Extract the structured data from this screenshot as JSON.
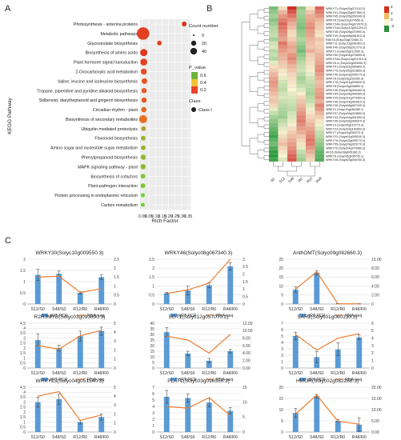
{
  "panels": {
    "a": "A",
    "b": "B",
    "c": "C"
  },
  "chart_data": [
    {
      "type": "scatter",
      "panel": "A",
      "ylabel": "KEGG Pathway",
      "xlabel": "Rich Factor",
      "xlim": [
        0,
        0.35
      ],
      "xticks": [
        "0.00",
        "0.05",
        "0.10",
        "0.15",
        "0.20",
        "0.25",
        "0.30",
        "0.35"
      ],
      "legend_count": {
        "title": "Count number",
        "items": [
          "0",
          "20",
          "40"
        ]
      },
      "legend_p": {
        "title": "P_value",
        "ticks": [
          "0.6",
          "0.4",
          "0.2"
        ]
      },
      "legend_class": {
        "title": "Class",
        "items": [
          "Class I"
        ]
      },
      "categories": [
        "Photosynthesis - antenna proteins",
        "Metabolic pathways",
        "Glucosinolate biosynthesis",
        "Biosynthesis of amino acids",
        "Plant hormone signal transduction",
        "2-Oxocarboxylic acid metabolism",
        "Valine, leucine and isoleucine biosynthesis",
        "Tropane, piperidine and pyridine alkaloid biosynthesis",
        "Stilbenoid, diarylheptanoid and gingerol biosynthesis",
        "Circadian rhythm - plant",
        "Biosynthesis of secondary metabolites",
        "Ubiquitin mediated proteolysis",
        "Flavonoid biosynthesis",
        "Amino sugar and nucleotide sugar metabolism",
        "Phenylpropanoid biosynthesis",
        "MAPK signaling pathway - plant",
        "Biosynthesis of cofactors",
        "Plant-pathogen interaction",
        "Protein processing in endoplasmic reticulum",
        "Carbon metabolism"
      ],
      "rich_factor": [
        0.32,
        0.005,
        0.13,
        0.01,
        0.01,
        0.01,
        0.015,
        0.012,
        0.012,
        0.01,
        0.005,
        0.008,
        0.006,
        0.006,
        0.006,
        0.005,
        0.004,
        0.004,
        0.003,
        0.002
      ],
      "count": [
        2,
        42,
        2,
        9,
        8,
        5,
        4,
        3,
        3,
        3,
        13,
        2,
        2,
        2,
        3,
        3,
        2,
        2,
        1,
        1
      ],
      "p_value": [
        0.02,
        0.1,
        0.1,
        0.05,
        0.1,
        0.15,
        0.18,
        0.2,
        0.2,
        0.25,
        0.3,
        0.5,
        0.55,
        0.55,
        0.6,
        0.6,
        0.65,
        0.65,
        0.7,
        0.7
      ]
    },
    {
      "type": "heatmap",
      "panel": "B",
      "columns": [
        "S0",
        "S12",
        "S48",
        "R0",
        "R12",
        "R48"
      ],
      "scale_ticks": [
        "4",
        "2",
        "0",
        "-2"
      ],
      "rows": [
        "WRKY71 (Solyc02g071130.3)",
        "WRKY41 (Solyc03g007380.2)",
        "WRKY45 (Solyc05g050340.3)",
        "WRKY6 (Solyc01g074650.3)",
        "WRKY24A (Solyc04g072070.3)",
        "WRKY24A (Solyc12g011200.2)",
        "WRKY28 (Solyc06g070990.3)",
        "WRKY29 (Solyc08g081610.3)",
        "RAV7A (Solyc04g072060.3)",
        "WRKY11 (Solyc12g096350.2)",
        "WRKY40 (Solyc05g012770.3)",
        "WRKY1 (Solyc05g012500.3)",
        "WRKY50 (Solyc04g078550.3)",
        "WRKY24A (Solyc10g011910.3)",
        "WRKY6-4 (Solyc02g093050.3)",
        "WRKY51 (Solyc02g080890.3)",
        "WRKY75 (Solyc05g015850.3)",
        "WRKY40 (Solyc03g095770.3)",
        "WRKY6 (Solyc03g232950.3)",
        "WRKY75 (Solyc01g095630.3)",
        "WRKY6 (Solyc03g008890.3)",
        "WRKY40 (Solyc09g066460.3)",
        "WRKY69 (Solyc08g065280.3)",
        "WRKY20 (Solyc01g079360.3)",
        "WRKY40 (Solyc04g064010.3)",
        "WRKY46 (Solyc08g067340.3)",
        "WRKY2 (Solyc10g084380.1)",
        "WRKY57 (Solyc05g015850.3)",
        "WRKY33 (Solyc04g051690.3)",
        "WRKY45 (Solyc06g066370.3)",
        "WRKY3 (Solyc06g015770.3)",
        "WRKY23 (Solyc03g116890.3)",
        "WRKY7 (Solyc02g094270.3)",
        "WRKY22 (Solyc01g095100.3)",
        "WRKY70 (Solyc03g095770.3)",
        "WRKY55 (Solyc09g015770.3)",
        "WRKY70 (Solyc04g074460.3)",
        "AFG5 (Solyc08g005180.3)",
        "WRKY6 (Solyc05g005745.1)",
        "WRKY26 (Solyc03g055750.3)"
      ],
      "values": [
        [
          -1.2,
          0.3,
          2.5,
          -1.0,
          0.2,
          1.8
        ],
        [
          -1.0,
          0.8,
          2.0,
          -0.8,
          0.6,
          1.5
        ],
        [
          -0.8,
          1.2,
          1.6,
          -0.9,
          0.9,
          1.2
        ],
        [
          -1.1,
          1.5,
          1.2,
          -1.0,
          1.0,
          0.8
        ],
        [
          -0.9,
          1.8,
          0.9,
          -1.1,
          1.2,
          0.6
        ],
        [
          -0.7,
          1.6,
          0.7,
          -1.2,
          1.3,
          0.5
        ],
        [
          -0.6,
          1.4,
          0.4,
          -1.0,
          1.1,
          0.3
        ],
        [
          -0.5,
          1.2,
          0.3,
          -0.9,
          1.0,
          0.2
        ],
        [
          -0.8,
          1.0,
          0.5,
          -0.7,
          0.8,
          0.6
        ],
        [
          -0.4,
          1.6,
          0.8,
          -0.9,
          0.7,
          0.4
        ],
        [
          -0.3,
          1.3,
          1.0,
          -1.1,
          0.6,
          0.5
        ],
        [
          -0.6,
          1.1,
          0.9,
          -1.3,
          0.9,
          0.6
        ],
        [
          -0.5,
          0.9,
          1.2,
          -1.0,
          0.5,
          0.8
        ],
        [
          -0.7,
          0.8,
          1.4,
          -0.8,
          0.4,
          0.9
        ],
        [
          -0.2,
          0.6,
          1.1,
          -0.6,
          0.3,
          1.0
        ],
        [
          0.3,
          0.5,
          0.8,
          -0.5,
          0.2,
          1.2
        ],
        [
          0.5,
          0.2,
          0.6,
          -0.4,
          0.1,
          1.3
        ],
        [
          0.8,
          0.1,
          0.4,
          -0.6,
          -0.2,
          1.1
        ],
        [
          1.0,
          -0.2,
          0.3,
          -0.8,
          -0.4,
          0.9
        ],
        [
          1.2,
          -0.4,
          0.2,
          -0.7,
          -0.5,
          0.7
        ],
        [
          1.1,
          -0.5,
          0.1,
          -0.5,
          -0.6,
          0.8
        ],
        [
          0.9,
          -0.6,
          0.0,
          -0.3,
          -0.7,
          1.0
        ],
        [
          0.7,
          -0.4,
          -0.2,
          0.1,
          -0.8,
          1.1
        ],
        [
          0.5,
          -0.3,
          -0.3,
          0.4,
          -0.6,
          1.2
        ],
        [
          0.6,
          -0.5,
          -0.4,
          0.6,
          -0.5,
          0.9
        ],
        [
          0.4,
          -0.6,
          -0.5,
          0.8,
          -0.3,
          1.4
        ],
        [
          -0.2,
          -0.7,
          -0.6,
          1.0,
          -0.1,
          1.2
        ],
        [
          -0.5,
          -0.8,
          -0.4,
          1.2,
          0.2,
          0.8
        ],
        [
          -0.8,
          -0.9,
          -0.3,
          1.4,
          0.4,
          0.5
        ],
        [
          -1.0,
          -0.6,
          -0.2,
          1.5,
          0.6,
          0.2
        ],
        [
          -1.2,
          -0.4,
          0.1,
          1.3,
          0.8,
          -0.1
        ],
        [
          -1.4,
          -0.2,
          0.3,
          1.1,
          1.0,
          -0.3
        ],
        [
          -1.6,
          0.1,
          0.5,
          0.9,
          1.2,
          -0.5
        ],
        [
          -1.8,
          0.3,
          0.7,
          0.6,
          1.4,
          -0.6
        ],
        [
          -1.5,
          0.5,
          0.9,
          0.4,
          1.6,
          -0.8
        ],
        [
          -1.3,
          0.7,
          1.1,
          0.2,
          1.5,
          -1.0
        ],
        [
          -1.6,
          0.4,
          1.3,
          -0.2,
          1.2,
          -1.2
        ],
        [
          -1.9,
          0.2,
          1.5,
          -0.5,
          0.9,
          -1.4
        ],
        [
          -2.0,
          0.0,
          1.8,
          -0.7,
          0.6,
          -1.5
        ],
        [
          -1.8,
          -0.3,
          2.0,
          -0.9,
          0.4,
          -1.6
        ]
      ]
    },
    {
      "type": "bar",
      "panel": "C",
      "title": "WRKY30(Solyc10g009550.3)",
      "categories": [
        "S12/S0",
        "S48/S0",
        "R12/R0",
        "R48/R0"
      ],
      "series": [
        {
          "name": "qRT-PCR",
          "values": [
            1.3,
            1.35,
            0.5,
            1.2
          ],
          "errors": [
            0.25,
            0.12,
            0.05,
            0.1
          ]
        },
        {
          "name": "RNA-seq",
          "values": [
            1.5,
            1.55,
            0.65,
            0.85
          ]
        }
      ],
      "ylim_left": [
        0,
        2
      ],
      "yticks_left": [
        "0",
        "0.5",
        "1",
        "1.5",
        "2"
      ],
      "ylim_right": [
        0,
        2.5
      ],
      "yticks_right": [
        "0",
        "0.5",
        "1",
        "1.5",
        "2",
        "2.5"
      ]
    },
    {
      "type": "bar",
      "panel": "C",
      "title": "WRKY46(Solyc08g067340.3)",
      "categories": [
        "S12/S0",
        "S48/S0",
        "R12/R0",
        "R48/R0"
      ],
      "series": [
        {
          "name": "qRT-PCR",
          "values": [
            0.6,
            0.75,
            1.05,
            2.1
          ],
          "errors": [
            0.05,
            0.25,
            0.15,
            0.2
          ]
        },
        {
          "name": "RNA-seq",
          "values": [
            0.7,
            0.95,
            1.4,
            3.0
          ]
        }
      ],
      "ylim_left": [
        0,
        2.5
      ],
      "yticks_left": [
        "0",
        "0.5",
        "1",
        "1.5",
        "2",
        "2.5"
      ],
      "ylim_right": [
        0,
        3
      ],
      "yticks_right": [
        "0",
        "0.5",
        "1",
        "1.5",
        "2",
        "2.5",
        "3"
      ]
    },
    {
      "type": "bar",
      "panel": "C",
      "title": "AnthOMT(Solyc09g082660.3)",
      "categories": [
        "S12/S0",
        "S48/S0",
        "R12/R0",
        "R48/R0"
      ],
      "series": [
        {
          "name": "qRT-PCR",
          "values": [
            8,
            17.5,
            0.2,
            0.1
          ],
          "errors": [
            1.5,
            1.2,
            0.1,
            0.1
          ]
        },
        {
          "name": "RNA-seq",
          "values": [
            3.3,
            7.2,
            0.05,
            0.05
          ]
        }
      ],
      "ylim_left": [
        0,
        25
      ],
      "yticks_left": [
        "0",
        "5",
        "10",
        "15",
        "20",
        "25"
      ],
      "ylim_right": [
        0,
        10
      ],
      "yticks_right": [
        "0",
        "2.00",
        "4.00",
        "6.00",
        "8.00",
        "10.00"
      ]
    },
    {
      "type": "bar",
      "panel": "C",
      "title": "R2R3MYB(Solyc03g093890.3)",
      "categories": [
        "S12/S0",
        "S48/S0",
        "R12/R0",
        "R48/R0"
      ],
      "series": [
        {
          "name": "qRT-PCR",
          "values": [
            2.8,
            2.0,
            3.2,
            3.7
          ],
          "errors": [
            0.6,
            0.3,
            0.5,
            0.4
          ]
        },
        {
          "name": "RNA-seq",
          "values": [
            2.5,
            2.1,
            3.6,
            4.2
          ]
        }
      ],
      "ylim_left": [
        0,
        4.5
      ],
      "yticks_left": [
        "0",
        "0.5",
        "1",
        "1.5",
        "2",
        "2.5",
        "3",
        "3.5",
        "4",
        "4.5"
      ],
      "ylim_right": [
        0,
        5
      ],
      "yticks_right": [
        "0",
        "1",
        "2",
        "3",
        "4",
        "5"
      ]
    },
    {
      "type": "bar",
      "panel": "C",
      "title": "SGT1(Solyc12g057070.2)",
      "categories": [
        "S12/S0",
        "S48/S0",
        "R12/R0",
        "R48/R0"
      ],
      "series": [
        {
          "name": "qRT-PCR",
          "values": [
            32,
            13,
            6.5,
            15
          ],
          "errors": [
            4,
            2,
            2,
            1.5
          ]
        },
        {
          "name": "RNA-seq",
          "values": [
            8.5,
            7.5,
            4.0,
            9.0
          ]
        }
      ],
      "ylim_left": [
        0,
        40
      ],
      "yticks_left": [
        "0",
        "5",
        "10",
        "15",
        "20",
        "25",
        "30",
        "35",
        "40"
      ],
      "ylim_right": [
        0,
        12
      ],
      "yticks_right": [
        "0.00",
        "2.00",
        "4.00",
        "6.00",
        "8.00",
        "10.00",
        "12.00"
      ]
    },
    {
      "type": "bar",
      "panel": "C",
      "title": "SAR2(Solyc01g060130.3)",
      "categories": [
        "S12/S0",
        "S48/S0",
        "R12/R0",
        "R48/R0"
      ],
      "series": [
        {
          "name": "qRT-PCR",
          "values": [
            5.0,
            1.7,
            2.9,
            4.8
          ],
          "errors": [
            0.6,
            0.9,
            1.0,
            0.4
          ]
        },
        {
          "name": "RNA-seq",
          "values": [
            4.5,
            2.4,
            4.0,
            4.6
          ]
        }
      ],
      "ylim_left": [
        0,
        7
      ],
      "yticks_left": [
        "0",
        "1",
        "2",
        "3",
        "4",
        "5",
        "6",
        "7"
      ],
      "ylim_right": [
        0,
        6
      ],
      "yticks_right": [
        "0",
        "1",
        "2",
        "3",
        "4",
        "5",
        "6"
      ]
    },
    {
      "type": "bar",
      "panel": "C",
      "title": "WRKY13(Solyc04g051540.3)",
      "categories": [
        "S12/S0",
        "S48/S0",
        "R12/R0",
        "R48/R0"
      ],
      "series": [
        {
          "name": "qRT-PCR",
          "values": [
            3.0,
            3.3,
            1.0,
            1.5
          ],
          "errors": [
            0.5,
            0.5,
            0.2,
            0.3
          ]
        },
        {
          "name": "RNA-seq",
          "values": [
            4.0,
            4.5,
            1.3,
            1.9
          ]
        }
      ],
      "ylim_left": [
        0,
        4.5
      ],
      "yticks_left": [
        "0",
        "0.5",
        "1",
        "1.5",
        "2",
        "2.5",
        "3",
        "3.5",
        "4",
        "4.5"
      ],
      "ylim_right": [
        0,
        5
      ],
      "yticks_right": [
        "0",
        "1",
        "2",
        "3",
        "4",
        "5"
      ]
    },
    {
      "type": "bar",
      "panel": "C",
      "title": "PLAT1(Solyc03g096550.3)",
      "categories": [
        "S12/S0",
        "S48/S0",
        "R12/R0",
        "R48/R0"
      ],
      "series": [
        {
          "name": "qRT-PCR",
          "values": [
            5.5,
            5.3,
            4.6,
            3.3
          ],
          "errors": [
            1.0,
            0.6,
            0.7,
            0.5
          ]
        },
        {
          "name": "RNA-seq",
          "values": [
            8.5,
            8.0,
            11.5,
            5.5
          ]
        }
      ],
      "ylim_left": [
        0,
        7
      ],
      "yticks_left": [
        "0",
        "1",
        "2",
        "3",
        "4",
        "5",
        "6",
        "7"
      ],
      "ylim_right": [
        0,
        15
      ],
      "yticks_right": [
        "0",
        "5",
        "10",
        "15"
      ]
    },
    {
      "type": "bar",
      "panel": "C",
      "title": "HMGR(Solyc02g082260.3)",
      "categories": [
        "S12/S0",
        "S48/S0",
        "R12/R0",
        "R48/R0"
      ],
      "series": [
        {
          "name": "qRT-PCR",
          "values": [
            8.5,
            16,
            5.0,
            3.3
          ],
          "errors": [
            2.0,
            0.8,
            0.5,
            3.0
          ]
        },
        {
          "name": "RNA-seq",
          "values": [
            8.0,
            16.5,
            4.8,
            3.5
          ]
        }
      ],
      "ylim_left": [
        0,
        20
      ],
      "yticks_left": [
        "0",
        "5",
        "10",
        "15",
        "20"
      ],
      "ylim_right": [
        0,
        20
      ],
      "yticks_right": [
        "0.00",
        "5.00",
        "10.00",
        "15.00",
        "20.00"
      ]
    }
  ]
}
